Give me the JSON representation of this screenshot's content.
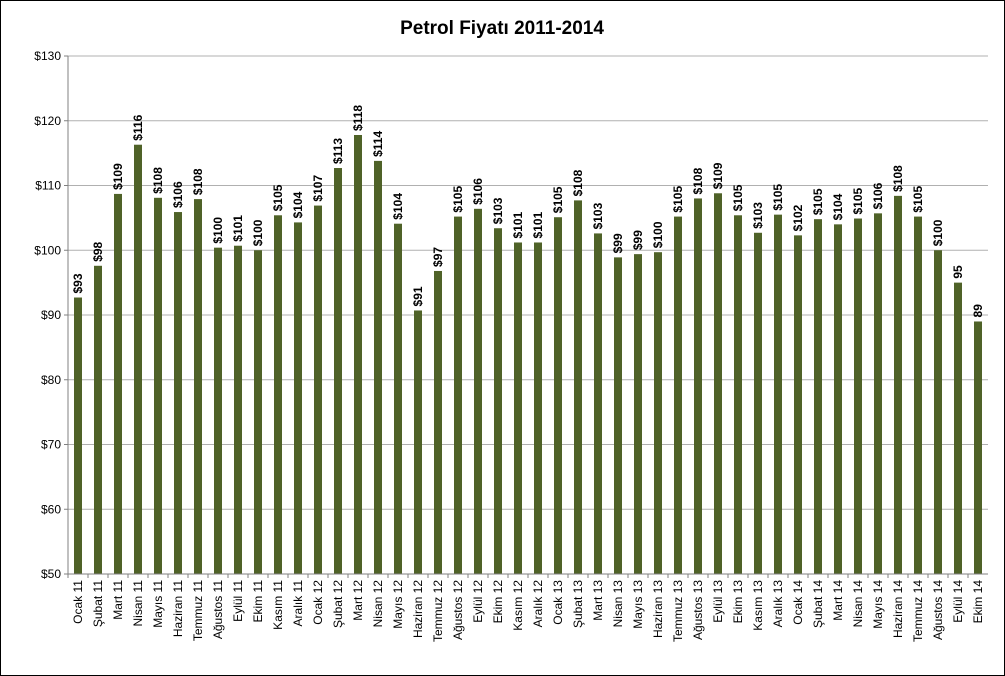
{
  "chart_data": {
    "type": "bar",
    "title": "Petrol Fiyatı 2011-2014",
    "xlabel": "",
    "ylabel": "",
    "ylim": [
      50,
      130
    ],
    "yticks": [
      "$50",
      "$60",
      "$70",
      "$80",
      "$90",
      "$100",
      "$110",
      "$120",
      "$130"
    ],
    "grid": true,
    "bar_color": "#4f6228",
    "categories": [
      "Ocak 11",
      "Şubat 11",
      "Mart 11",
      "Nisan 11",
      "Mayıs 11",
      "Haziran 11",
      "Temmuz 11",
      "Ağustos 11",
      "Eylül 11",
      "Ekim 11",
      "Kasım 11",
      "Aralık 11",
      "Ocak 12",
      "Şubat 12",
      "Mart 12",
      "Nisan 12",
      "Mayıs 12",
      "Haziran 12",
      "Temmuz 12",
      "Ağustos 12",
      "Eylül 12",
      "Ekim 12",
      "Kasım 12",
      "Aralık 12",
      "Ocak 13",
      "Şubat 13",
      "Mart 13",
      "Nisan 13",
      "Mayıs 13",
      "Haziran 13",
      "Temmuz 13",
      "Ağustos 13",
      "Eylül 13",
      "Ekim 13",
      "Kasım 13",
      "Aralık 13",
      "Ocak 14",
      "Şubat 14",
      "Mart 14",
      "Nisan 14",
      "Mayıs 14",
      "Haziran 14",
      "Temmuz 14",
      "Ağustos 14",
      "Eylül 14",
      "Ekim 14"
    ],
    "values": [
      92.7,
      97.6,
      108.7,
      116.3,
      108.1,
      105.9,
      107.9,
      100.4,
      100.7,
      100.0,
      105.4,
      104.3,
      106.9,
      112.7,
      117.8,
      113.8,
      104.1,
      90.7,
      96.8,
      105.2,
      106.4,
      103.4,
      101.2,
      101.2,
      105.1,
      107.7,
      102.6,
      98.9,
      99.4,
      99.7,
      105.2,
      108.0,
      108.8,
      105.4,
      102.7,
      105.5,
      102.3,
      104.8,
      104.0,
      104.9,
      105.7,
      108.4,
      105.2,
      100.0,
      95.0,
      89.0
    ],
    "data_labels": [
      "$93",
      "$98",
      "$109",
      "$116",
      "$108",
      "$106",
      "$108",
      "$100",
      "$101",
      "$100",
      "$105",
      "$104",
      "$107",
      "$113",
      "$118",
      "$114",
      "$104",
      "$91",
      "$97",
      "$105",
      "$106",
      "$103",
      "$101",
      "$101",
      "$105",
      "$108",
      "$103",
      "$99",
      "$99",
      "$100",
      "$105",
      "$108",
      "$109",
      "$105",
      "$103",
      "$105",
      "$102",
      "$105",
      "$104",
      "$105",
      "$106",
      "$108",
      "$105",
      "$100",
      "95",
      "89"
    ]
  }
}
